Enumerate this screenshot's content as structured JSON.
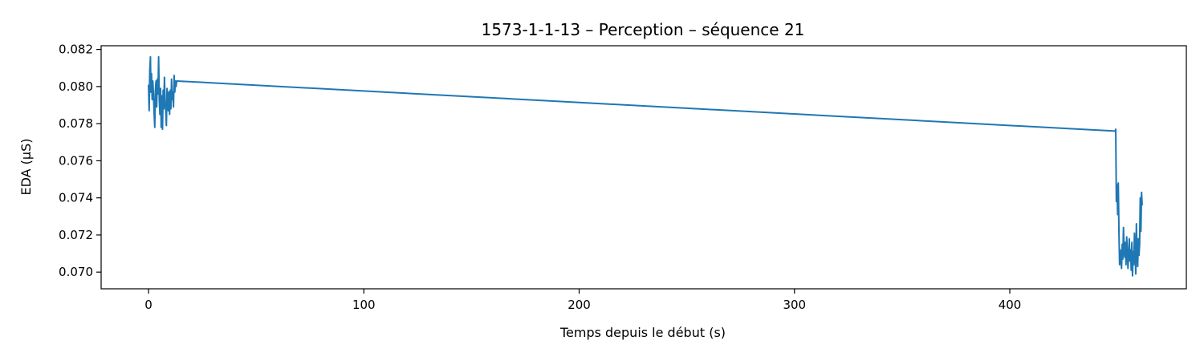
{
  "chart_data": {
    "type": "line",
    "title": "1573-1-1-13 – Perception – séquence 21",
    "xlabel": "Temps depuis le début (s)",
    "ylabel": "EDA (µS)",
    "xlim": [
      -22,
      482
    ],
    "ylim": [
      0.0691,
      0.0822
    ],
    "x_ticks": [
      0,
      100,
      200,
      300,
      400
    ],
    "x_tick_labels": [
      "0",
      "100",
      "200",
      "300",
      "400"
    ],
    "y_ticks": [
      0.07,
      0.072,
      0.074,
      0.076,
      0.078,
      0.08,
      0.082
    ],
    "y_tick_labels": [
      "0.070",
      "0.072",
      "0.074",
      "0.076",
      "0.078",
      "0.080",
      "0.082"
    ],
    "grid": false,
    "series": [
      {
        "color": "#1f77b4",
        "x": [
          0,
          0.3,
          0.6,
          0.9,
          1.1,
          1.4,
          1.7,
          2.0,
          2.3,
          2.6,
          2.9,
          3.2,
          3.5,
          3.8,
          4.1,
          4.4,
          4.7,
          5.0,
          5.3,
          5.6,
          5.9,
          6.2,
          6.5,
          6.8,
          7.1,
          7.4,
          7.7,
          8.0,
          8.3,
          8.6,
          8.9,
          9.2,
          9.5,
          9.8,
          10.1,
          10.4,
          10.7,
          11.0,
          11.3,
          11.6,
          11.9,
          12.2,
          12.5,
          12.8,
          13.1,
          449.0,
          449.2,
          449.5,
          449.8,
          450.1,
          450.4,
          450.7,
          451.0,
          451.3,
          451.6,
          451.9,
          452.2,
          452.5,
          452.8,
          453.1,
          453.4,
          453.7,
          454.0,
          454.3,
          454.6,
          454.9,
          455.2,
          455.5,
          455.8,
          456.1,
          456.4,
          456.7,
          457.0,
          457.3,
          457.6,
          457.9,
          458.2,
          458.5,
          458.8,
          459.1,
          459.4,
          459.7,
          460.0,
          460.3,
          460.6,
          460.9,
          461.2,
          461.5
        ],
        "y": [
          0.0801,
          0.0787,
          0.0809,
          0.0816,
          0.0797,
          0.0807,
          0.0793,
          0.0803,
          0.0796,
          0.0786,
          0.0778,
          0.0798,
          0.0803,
          0.0789,
          0.0804,
          0.0796,
          0.0816,
          0.0793,
          0.0785,
          0.0799,
          0.0778,
          0.0795,
          0.0777,
          0.0798,
          0.0788,
          0.0805,
          0.0792,
          0.0787,
          0.0779,
          0.0799,
          0.0795,
          0.0787,
          0.0797,
          0.0785,
          0.0798,
          0.0788,
          0.0804,
          0.0793,
          0.0797,
          0.0789,
          0.0806,
          0.0797,
          0.0803,
          0.08,
          0.0803,
          0.0776,
          0.0777,
          0.0738,
          0.0747,
          0.0731,
          0.0748,
          0.0722,
          0.0704,
          0.0712,
          0.0708,
          0.0702,
          0.0715,
          0.0707,
          0.0724,
          0.0712,
          0.0708,
          0.0716,
          0.0704,
          0.0719,
          0.0711,
          0.0702,
          0.071,
          0.0718,
          0.0706,
          0.0712,
          0.0701,
          0.0716,
          0.0698,
          0.0711,
          0.0704,
          0.0721,
          0.0713,
          0.0699,
          0.0726,
          0.0709,
          0.0703,
          0.0718,
          0.0709,
          0.0715,
          0.074,
          0.0722,
          0.0743,
          0.0736
        ]
      }
    ]
  }
}
